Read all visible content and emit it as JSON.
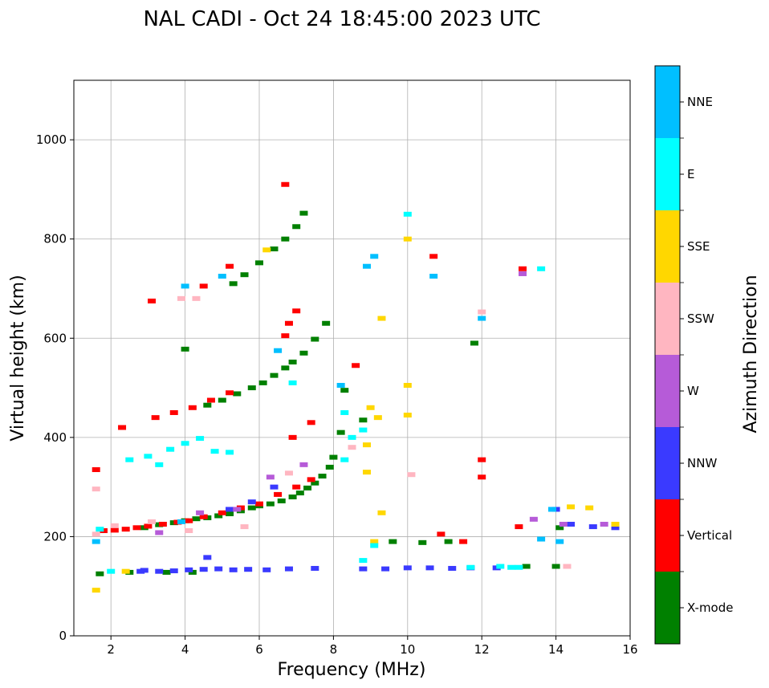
{
  "chart_data": {
    "type": "scatter",
    "title": "NAL CADI - Oct 24 18:45:00 2023 UTC",
    "xlabel": "Frequency (MHz)",
    "ylabel": "Virtual height (km)",
    "xlim": [
      1,
      16
    ],
    "ylim": [
      0,
      1120
    ],
    "xticks": [
      2,
      4,
      6,
      8,
      10,
      12,
      14,
      16
    ],
    "yticks": [
      0,
      200,
      400,
      600,
      800,
      1000
    ],
    "grid": true,
    "colorbar": {
      "label": "Azimuth Direction",
      "categories": [
        "X-mode",
        "Vertical",
        "NNW",
        "W",
        "SSW",
        "SSE",
        "E",
        "NNE"
      ],
      "colors": [
        "#008000",
        "#ff0000",
        "#3a3aff",
        "#b65bd8",
        "#ffb6c1",
        "#ffd700",
        "#00ffff",
        "#00bfff"
      ]
    },
    "series": [
      {
        "name": "X-mode",
        "points": [
          [
            2.9,
            218
          ],
          [
            3.3,
            224
          ],
          [
            3.7,
            228
          ],
          [
            4.0,
            232
          ],
          [
            4.3,
            236
          ],
          [
            4.6,
            238
          ],
          [
            4.9,
            242
          ],
          [
            5.2,
            246
          ],
          [
            5.5,
            252
          ],
          [
            5.8,
            258
          ],
          [
            6.0,
            262
          ],
          [
            6.3,
            266
          ],
          [
            6.6,
            272
          ],
          [
            6.9,
            280
          ],
          [
            7.1,
            288
          ],
          [
            7.3,
            298
          ],
          [
            7.5,
            308
          ],
          [
            7.7,
            322
          ],
          [
            7.9,
            340
          ],
          [
            8.0,
            360
          ],
          [
            4.6,
            465
          ],
          [
            5.0,
            475
          ],
          [
            5.4,
            488
          ],
          [
            5.8,
            500
          ],
          [
            6.1,
            510
          ],
          [
            6.4,
            525
          ],
          [
            6.7,
            540
          ],
          [
            6.9,
            552
          ],
          [
            7.2,
            570
          ],
          [
            7.5,
            598
          ],
          [
            7.8,
            630
          ],
          [
            5.3,
            710
          ],
          [
            5.6,
            728
          ],
          [
            6.0,
            752
          ],
          [
            6.4,
            780
          ],
          [
            6.7,
            800
          ],
          [
            7.0,
            825
          ],
          [
            7.2,
            852
          ],
          [
            1.7,
            125
          ],
          [
            2.5,
            128
          ],
          [
            3.5,
            128
          ],
          [
            4.2,
            128
          ],
          [
            13.2,
            140
          ],
          [
            14.0,
            140
          ],
          [
            14.1,
            218
          ],
          [
            8.3,
            495
          ],
          [
            8.8,
            435
          ],
          [
            9.6,
            190
          ],
          [
            10.4,
            188
          ],
          [
            11.1,
            190
          ],
          [
            11.8,
            590
          ],
          [
            8.2,
            410
          ],
          [
            4.0,
            578
          ]
        ]
      },
      {
        "name": "Vertical",
        "points": [
          [
            1.8,
            212
          ],
          [
            2.1,
            213
          ],
          [
            2.4,
            215
          ],
          [
            2.7,
            218
          ],
          [
            3.0,
            221
          ],
          [
            3.4,
            225
          ],
          [
            3.8,
            229
          ],
          [
            4.1,
            232
          ],
          [
            4.5,
            240
          ],
          [
            5.0,
            248
          ],
          [
            5.5,
            258
          ],
          [
            6.0,
            266
          ],
          [
            6.5,
            285
          ],
          [
            7.0,
            300
          ],
          [
            7.4,
            315
          ],
          [
            3.2,
            440
          ],
          [
            3.7,
            450
          ],
          [
            4.2,
            460
          ],
          [
            4.7,
            475
          ],
          [
            5.2,
            490
          ],
          [
            6.7,
            605
          ],
          [
            6.8,
            630
          ],
          [
            7.0,
            655
          ],
          [
            6.7,
            910
          ],
          [
            3.1,
            675
          ],
          [
            4.5,
            705
          ],
          [
            5.2,
            745
          ],
          [
            6.9,
            400
          ],
          [
            7.4,
            430
          ],
          [
            8.6,
            545
          ],
          [
            12.0,
            355
          ],
          [
            12.0,
            320
          ],
          [
            10.7,
            765
          ],
          [
            13.1,
            740
          ],
          [
            13.0,
            220
          ],
          [
            10.9,
            205
          ],
          [
            11.5,
            190
          ],
          [
            2.3,
            420
          ],
          [
            1.6,
            335
          ]
        ]
      },
      {
        "name": "NNW",
        "points": [
          [
            2.9,
            132
          ],
          [
            3.3,
            130
          ],
          [
            3.7,
            131
          ],
          [
            4.1,
            133
          ],
          [
            4.5,
            134
          ],
          [
            4.9,
            135
          ],
          [
            5.3,
            133
          ],
          [
            5.7,
            134
          ],
          [
            6.2,
            133
          ],
          [
            6.8,
            135
          ],
          [
            7.5,
            136
          ],
          [
            8.8,
            135
          ],
          [
            9.4,
            135
          ],
          [
            10.0,
            137
          ],
          [
            10.6,
            137
          ],
          [
            11.2,
            136
          ],
          [
            11.7,
            137
          ],
          [
            12.4,
            137
          ],
          [
            14.0,
            255
          ],
          [
            14.4,
            225
          ],
          [
            15.0,
            220
          ],
          [
            15.6,
            218
          ],
          [
            5.2,
            255
          ],
          [
            5.8,
            270
          ],
          [
            6.4,
            300
          ],
          [
            4.6,
            158
          ],
          [
            2.8,
            130
          ]
        ]
      },
      {
        "name": "W",
        "points": [
          [
            3.3,
            208
          ],
          [
            4.4,
            248
          ],
          [
            5.4,
            255
          ],
          [
            6.3,
            320
          ],
          [
            7.2,
            345
          ],
          [
            13.4,
            235
          ],
          [
            14.2,
            225
          ],
          [
            15.3,
            225
          ],
          [
            13.1,
            730
          ]
        ]
      },
      {
        "name": "SSW",
        "points": [
          [
            1.6,
            205
          ],
          [
            2.1,
            222
          ],
          [
            3.1,
            230
          ],
          [
            3.9,
            680
          ],
          [
            4.3,
            680
          ],
          [
            5.6,
            220
          ],
          [
            6.8,
            328
          ],
          [
            8.5,
            380
          ],
          [
            10.1,
            325
          ],
          [
            12.0,
            653
          ],
          [
            14.3,
            140
          ],
          [
            4.1,
            212
          ],
          [
            1.6,
            296
          ]
        ]
      },
      {
        "name": "SSE",
        "points": [
          [
            9.0,
            460
          ],
          [
            9.2,
            440
          ],
          [
            9.3,
            640
          ],
          [
            10.0,
            505
          ],
          [
            10.0,
            445
          ],
          [
            10.0,
            800
          ],
          [
            8.9,
            385
          ],
          [
            8.9,
            330
          ],
          [
            9.3,
            248
          ],
          [
            14.4,
            260
          ],
          [
            14.9,
            258
          ],
          [
            15.6,
            225
          ],
          [
            6.2,
            778
          ],
          [
            1.6,
            92
          ],
          [
            2.4,
            130
          ],
          [
            9.1,
            190
          ]
        ]
      },
      {
        "name": "E",
        "points": [
          [
            1.7,
            215
          ],
          [
            2.0,
            130
          ],
          [
            2.5,
            355
          ],
          [
            3.0,
            362
          ],
          [
            3.3,
            345
          ],
          [
            3.6,
            376
          ],
          [
            4.0,
            388
          ],
          [
            4.4,
            398
          ],
          [
            4.8,
            372
          ],
          [
            5.2,
            370
          ],
          [
            8.3,
            450
          ],
          [
            8.5,
            400
          ],
          [
            8.3,
            355
          ],
          [
            8.8,
            415
          ],
          [
            10.0,
            850
          ],
          [
            12.5,
            140
          ],
          [
            13.0,
            138
          ],
          [
            13.6,
            740
          ],
          [
            8.8,
            152
          ],
          [
            9.1,
            182
          ],
          [
            11.7,
            138
          ],
          [
            12.8,
            138
          ],
          [
            6.9,
            510
          ]
        ]
      },
      {
        "name": "NNE",
        "points": [
          [
            1.6,
            190
          ],
          [
            4.0,
            705
          ],
          [
            5.0,
            725
          ],
          [
            6.5,
            575
          ],
          [
            8.9,
            745
          ],
          [
            9.1,
            765
          ],
          [
            10.7,
            725
          ],
          [
            12.0,
            640
          ],
          [
            13.6,
            195
          ],
          [
            14.1,
            190
          ],
          [
            13.9,
            255
          ],
          [
            8.2,
            505
          ],
          [
            3.9,
            230
          ]
        ]
      }
    ]
  }
}
